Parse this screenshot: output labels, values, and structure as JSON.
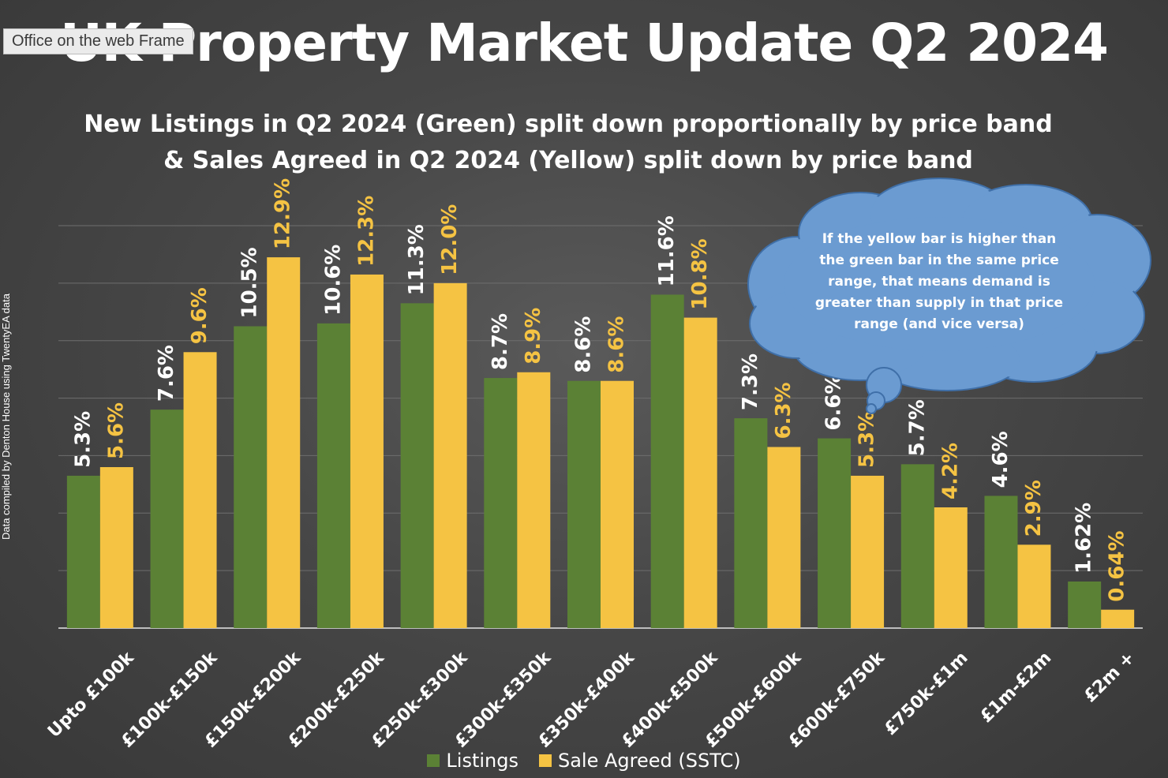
{
  "frame_label": "Office on the web Frame",
  "side_note": "Data compiled by Denton House using TwentyEA data",
  "callout": "If the yellow bar is higher than the green bar in the same price range, that means demand is greater than supply in that price range (and vice versa)",
  "colors": {
    "listings": "#5b8135",
    "sale_agreed": "#f5c343",
    "listings_label": "#ffffff",
    "sale_label": "#f5c343",
    "callout_fill": "#6b9bd1"
  },
  "chart_data": {
    "type": "bar",
    "title": "UK Property Market Update Q2 2024",
    "subtitle": [
      "New Listings in Q2 2024 (Green) split down proportionally by price band",
      "& Sales Agreed in Q2 2024 (Yellow) split down by price band"
    ],
    "categories": [
      "Upto £100k",
      "£100k-£150k",
      "£150k-£200k",
      "£200k-£250k",
      "£250k-£300k",
      "£300k-£350k",
      "£350k-£400k",
      "£400k-£500k",
      "£500k-£600k",
      "£600k-£750k",
      "£750k-£1m",
      "£1m-£2m",
      "£2m +"
    ],
    "series": [
      {
        "name": "Listings",
        "values": [
          5.3,
          7.6,
          10.5,
          10.6,
          11.3,
          8.7,
          8.6,
          11.6,
          7.3,
          6.6,
          5.7,
          4.6,
          1.62
        ],
        "labels": [
          "5.3%",
          "7.6%",
          "10.5%",
          "10.6%",
          "11.3%",
          "8.7%",
          "8.6%",
          "11.6%",
          "7.3%",
          "6.6%",
          "5.7%",
          "4.6%",
          "1.62%"
        ]
      },
      {
        "name": "Sale Agreed (SSTC)",
        "values": [
          5.6,
          9.6,
          12.9,
          12.3,
          12.0,
          8.9,
          8.6,
          10.8,
          6.3,
          5.3,
          4.2,
          2.9,
          0.64
        ],
        "labels": [
          "5.6%",
          "9.6%",
          "12.9%",
          "12.3%",
          "12.0%",
          "8.9%",
          "8.6%",
          "10.8%",
          "6.3%",
          "5.3%",
          "4.2%",
          "2.9%",
          "0.64%"
        ]
      }
    ],
    "ylim": [
      0,
      14
    ],
    "grid": true,
    "legend": "bottom"
  }
}
